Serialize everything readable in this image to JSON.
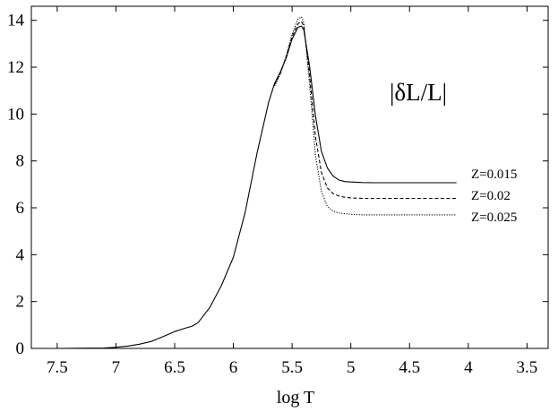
{
  "chart_data": {
    "type": "line",
    "title": "",
    "annotation": "|δL/L|",
    "xlabel": "log T",
    "ylabel": "",
    "xlim": [
      7.72,
      3.32
    ],
    "ylim": [
      0,
      14.6
    ],
    "x_reversed": true,
    "xticks": [
      7.5,
      7,
      6.5,
      6,
      5.5,
      5,
      4.5,
      4,
      3.5
    ],
    "xtick_labels": [
      "7.5",
      "7",
      "6.5",
      "6",
      "5.5",
      "5",
      "4.5",
      "4",
      "3.5"
    ],
    "yticks": [
      0,
      2,
      4,
      6,
      8,
      10,
      12,
      14
    ],
    "ytick_labels": [
      "0",
      "2",
      "4",
      "6",
      "8",
      "10",
      "12",
      "14"
    ],
    "grid": false,
    "legend_placement": "right",
    "series": [
      {
        "name": "Z=0.015",
        "style": "solid",
        "x": [
          7.5,
          7.1,
          7.0,
          6.9,
          6.8,
          6.7,
          6.6,
          6.5,
          6.4,
          6.35,
          6.3,
          6.2,
          6.1,
          6.0,
          5.9,
          5.8,
          5.7,
          5.65,
          5.6,
          5.55,
          5.5,
          5.45,
          5.42,
          5.4,
          5.35,
          5.3,
          5.25,
          5.2,
          5.15,
          5.1,
          5.05,
          5.0,
          4.9,
          4.8,
          4.7,
          4.6,
          4.5,
          4.4,
          4.3,
          4.2,
          4.1
        ],
        "y": [
          0,
          0.02,
          0.05,
          0.1,
          0.18,
          0.3,
          0.5,
          0.72,
          0.88,
          0.95,
          1.1,
          1.75,
          2.7,
          3.9,
          5.8,
          8.3,
          10.5,
          11.3,
          11.8,
          12.4,
          13.2,
          13.7,
          13.75,
          13.6,
          12.0,
          9.9,
          8.4,
          7.7,
          7.35,
          7.18,
          7.12,
          7.1,
          7.08,
          7.07,
          7.07,
          7.07,
          7.07,
          7.07,
          7.07,
          7.07,
          7.07
        ]
      },
      {
        "name": "Z=0.02",
        "style": "dashed",
        "x": [
          5.65,
          5.6,
          5.55,
          5.5,
          5.45,
          5.42,
          5.4,
          5.35,
          5.3,
          5.25,
          5.2,
          5.15,
          5.1,
          5.05,
          5.0,
          4.9,
          4.8,
          4.7,
          4.6,
          4.5,
          4.4,
          4.3,
          4.2,
          4.1
        ],
        "y": [
          11.25,
          11.75,
          12.45,
          13.3,
          13.85,
          13.95,
          13.75,
          11.6,
          9.0,
          7.5,
          6.85,
          6.6,
          6.5,
          6.45,
          6.42,
          6.4,
          6.4,
          6.4,
          6.4,
          6.4,
          6.4,
          6.4,
          6.4,
          6.4
        ]
      },
      {
        "name": "Z=0.025",
        "style": "dotted",
        "x": [
          5.65,
          5.6,
          5.55,
          5.5,
          5.45,
          5.42,
          5.4,
          5.35,
          5.3,
          5.25,
          5.2,
          5.15,
          5.1,
          5.05,
          5.0,
          4.9,
          4.8,
          4.7,
          4.6,
          4.5,
          4.4,
          4.3,
          4.2,
          4.1
        ],
        "y": [
          11.2,
          11.7,
          12.5,
          13.4,
          14.05,
          14.15,
          13.9,
          11.2,
          8.2,
          6.7,
          6.05,
          5.85,
          5.78,
          5.75,
          5.72,
          5.7,
          5.7,
          5.7,
          5.7,
          5.7,
          5.7,
          5.7,
          5.7,
          5.7
        ]
      }
    ]
  }
}
